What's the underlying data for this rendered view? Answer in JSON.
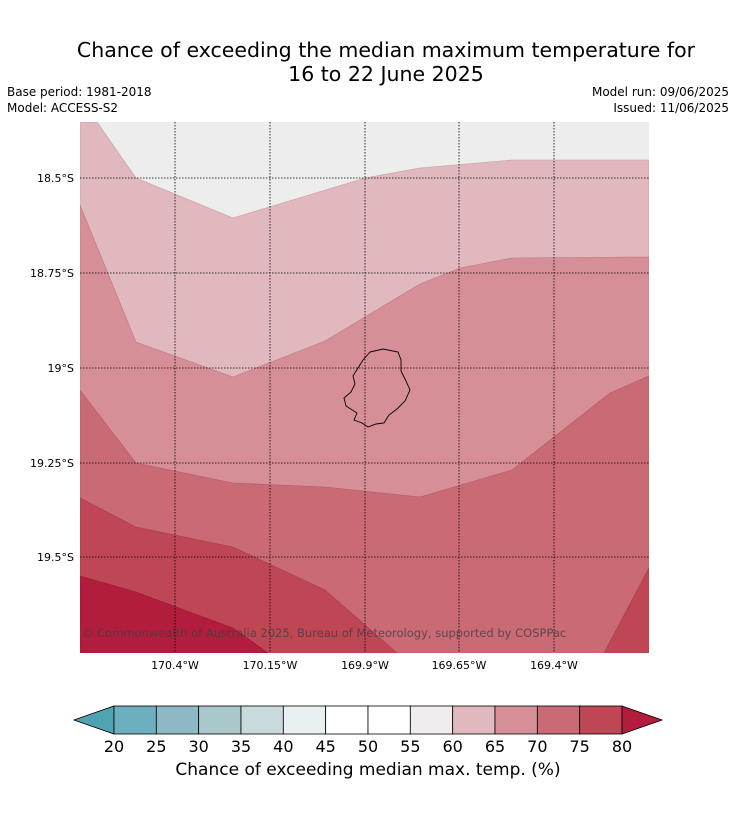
{
  "title_line1": "Chance of exceeding the median maximum temperature for",
  "title_line2": "16 to 22 June 2025",
  "base_period": "Base period: 1981-2018",
  "model": "Model: ACCESS-S2",
  "model_run": "Model run: 09/06/2025",
  "issued": "Issued: 11/06/2025",
  "copyright": "© Commonwealth of Australia 2025, Bureau of Meteorology, supported by COSPPac",
  "lat_ticks": [
    "18.5°S",
    "18.75°S",
    "19°S",
    "19.25°S",
    "19.5°S"
  ],
  "lon_ticks": [
    "170.4°W",
    "170.15°W",
    "169.9°W",
    "169.65°W",
    "169.4°W"
  ],
  "colorbar": {
    "label": "Chance of exceeding median max. temp. (%)",
    "ticks": [
      "20",
      "25",
      "30",
      "35",
      "40",
      "45",
      "50",
      "55",
      "60",
      "65",
      "70",
      "75",
      "80"
    ],
    "colors": [
      "#4fa3b3",
      "#6eafbf",
      "#8db9c4",
      "#aac8cc",
      "#c9dadd",
      "#e8f0f1",
      "#ffffff",
      "#ffffff",
      "#efeded",
      "#e0b8bd",
      "#d68e97",
      "#c96a75",
      "#bf4755",
      "#b31d3d"
    ]
  }
}
